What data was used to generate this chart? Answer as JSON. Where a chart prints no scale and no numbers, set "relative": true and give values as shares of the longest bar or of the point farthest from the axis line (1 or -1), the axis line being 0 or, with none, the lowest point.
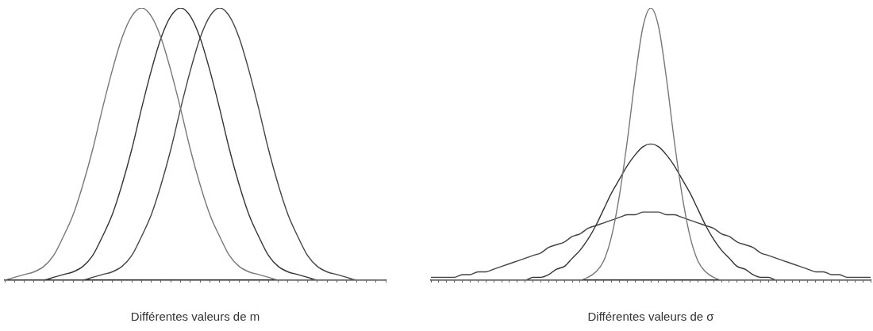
{
  "chart_data": [
    {
      "type": "line",
      "relative": true,
      "marker": "none",
      "xlabel": "Différentes valeurs de m",
      "categories": [
        null,
        null,
        null,
        null,
        null,
        null,
        null,
        null,
        null,
        null,
        null,
        null,
        null,
        null,
        null,
        null,
        null,
        null,
        null,
        null,
        null,
        null,
        null,
        null,
        null,
        null,
        null,
        null,
        null,
        null,
        null,
        null,
        null,
        null,
        null,
        null,
        null,
        null,
        null,
        null
      ],
      "series": [
        {
          "color": "#777777",
          "values": [
            0,
            0.01,
            0.02,
            0.03,
            0.05,
            0.09,
            0.16,
            0.24,
            0.35,
            0.48,
            0.63,
            0.77,
            0.89,
            0.97,
            1,
            0.97,
            0.89,
            0.77,
            0.63,
            0.48,
            0.35,
            0.24,
            0.16,
            0.09,
            0.05,
            0.03,
            0.02,
            0.01,
            0,
            0,
            0,
            0,
            0,
            0,
            0,
            0,
            0,
            0,
            0,
            0
          ]
        },
        {
          "color": "#333333",
          "values": [
            0,
            0,
            0,
            0,
            0,
            0.01,
            0.02,
            0.03,
            0.05,
            0.09,
            0.16,
            0.24,
            0.35,
            0.48,
            0.63,
            0.77,
            0.89,
            0.97,
            1,
            0.97,
            0.89,
            0.77,
            0.63,
            0.48,
            0.35,
            0.24,
            0.16,
            0.09,
            0.05,
            0.03,
            0.02,
            0.01,
            0,
            0,
            0,
            0,
            0,
            0,
            0,
            0
          ]
        },
        {
          "color": "#444444",
          "values": [
            0,
            0,
            0,
            0,
            0,
            0,
            0,
            0,
            0,
            0.01,
            0.02,
            0.03,
            0.05,
            0.09,
            0.16,
            0.24,
            0.35,
            0.48,
            0.63,
            0.77,
            0.89,
            0.97,
            1,
            0.97,
            0.89,
            0.77,
            0.63,
            0.48,
            0.35,
            0.24,
            0.16,
            0.09,
            0.05,
            0.03,
            0.02,
            0.01,
            0,
            0,
            0,
            0
          ]
        }
      ]
    },
    {
      "type": "line",
      "relative": true,
      "marker": "none",
      "xlabel": "Différentes valeurs de σ",
      "categories": [
        null,
        null,
        null,
        null,
        null,
        null,
        null,
        null,
        null,
        null,
        null,
        null,
        null,
        null,
        null,
        null,
        null,
        null,
        null,
        null,
        null,
        null,
        null,
        null,
        null,
        null,
        null,
        null,
        null,
        null,
        null,
        null,
        null,
        null,
        null,
        null,
        null,
        null,
        null,
        null,
        null,
        null,
        null,
        null,
        null,
        null,
        null,
        null,
        null,
        null,
        null,
        null,
        null,
        null,
        null,
        null,
        null
      ],
      "series": [
        {
          "color": "#777777",
          "values": [
            0,
            0,
            0,
            0,
            0,
            0,
            0,
            0,
            0,
            0,
            0,
            0,
            0,
            0,
            0,
            0,
            0,
            0,
            0,
            0,
            0.01,
            0.03,
            0.07,
            0.16,
            0.31,
            0.51,
            0.74,
            0.93,
            1,
            0.93,
            0.74,
            0.51,
            0.31,
            0.16,
            0.07,
            0.03,
            0.01,
            0,
            0,
            0,
            0,
            0,
            0,
            0,
            0,
            0,
            0,
            0,
            0,
            0,
            0,
            0,
            0,
            0,
            0,
            0,
            0
          ]
        },
        {
          "color": "#333333",
          "values": [
            0,
            0,
            0,
            0,
            0,
            0,
            0,
            0,
            0,
            0,
            0,
            0,
            0,
            0.01,
            0.01,
            0.02,
            0.04,
            0.05,
            0.08,
            0.11,
            0.15,
            0.2,
            0.26,
            0.32,
            0.37,
            0.42,
            0.46,
            0.49,
            0.5,
            0.49,
            0.46,
            0.42,
            0.37,
            0.32,
            0.26,
            0.2,
            0.15,
            0.11,
            0.08,
            0.05,
            0.04,
            0.02,
            0.01,
            0.01,
            0,
            0,
            0,
            0,
            0,
            0,
            0,
            0,
            0,
            0,
            0,
            0,
            0
          ]
        },
        {
          "color": "#444444",
          "values": [
            0.01,
            0.01,
            0.01,
            0.01,
            0.02,
            0.02,
            0.03,
            0.03,
            0.04,
            0.05,
            0.06,
            0.07,
            0.08,
            0.09,
            0.1,
            0.12,
            0.13,
            0.14,
            0.16,
            0.17,
            0.19,
            0.2,
            0.21,
            0.22,
            0.23,
            0.24,
            0.24,
            0.25,
            0.25,
            0.25,
            0.24,
            0.24,
            0.23,
            0.22,
            0.21,
            0.2,
            0.19,
            0.17,
            0.16,
            0.14,
            0.13,
            0.12,
            0.1,
            0.09,
            0.08,
            0.07,
            0.06,
            0.05,
            0.04,
            0.03,
            0.03,
            0.02,
            0.02,
            0.01,
            0.01,
            0.01,
            0.01
          ]
        }
      ]
    }
  ]
}
